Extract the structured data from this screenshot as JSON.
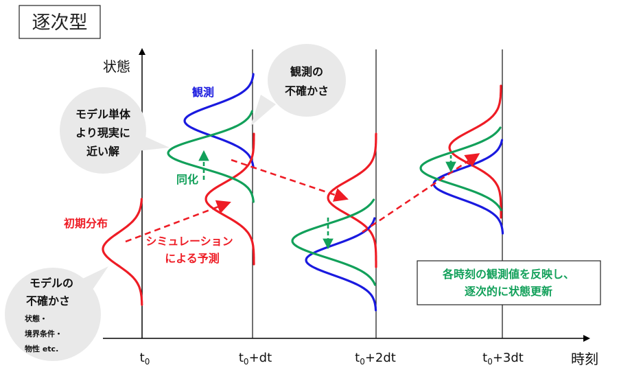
{
  "title": "逐次型",
  "axes": {
    "y_label": "状態",
    "x_label": "時刻",
    "ticks": [
      {
        "base": "t",
        "sub": "0",
        "suffix": ""
      },
      {
        "base": "t",
        "sub": "0",
        "suffix": "+dt"
      },
      {
        "base": "t",
        "sub": "0",
        "suffix": "+2dt"
      },
      {
        "base": "t",
        "sub": "0",
        "suffix": "+3dt"
      }
    ]
  },
  "labels": {
    "observation": "観測",
    "assimilation": "同化",
    "initial_distribution": "初期分布",
    "simulation_line1": "シミュレーション",
    "simulation_line2": "による予測"
  },
  "bubbles": {
    "obs_uncertainty": [
      "観測の",
      "不確かさ"
    ],
    "closer_solution": [
      "モデル単体",
      "より現実に",
      "近い解"
    ],
    "model_uncertainty": {
      "title": [
        "モデルの",
        "不確かさ"
      ],
      "items": [
        "状態・",
        "境界条件・",
        "物性 etc."
      ]
    }
  },
  "note_box": [
    "各時刻の観測値を反映し、",
    "逐次的に状態更新"
  ],
  "colors": {
    "prediction": "#ee1c25",
    "observation": "#1a1adf",
    "analysis": "#12a05a",
    "bubble": "#e9e9e9",
    "axis": "#000000"
  }
}
